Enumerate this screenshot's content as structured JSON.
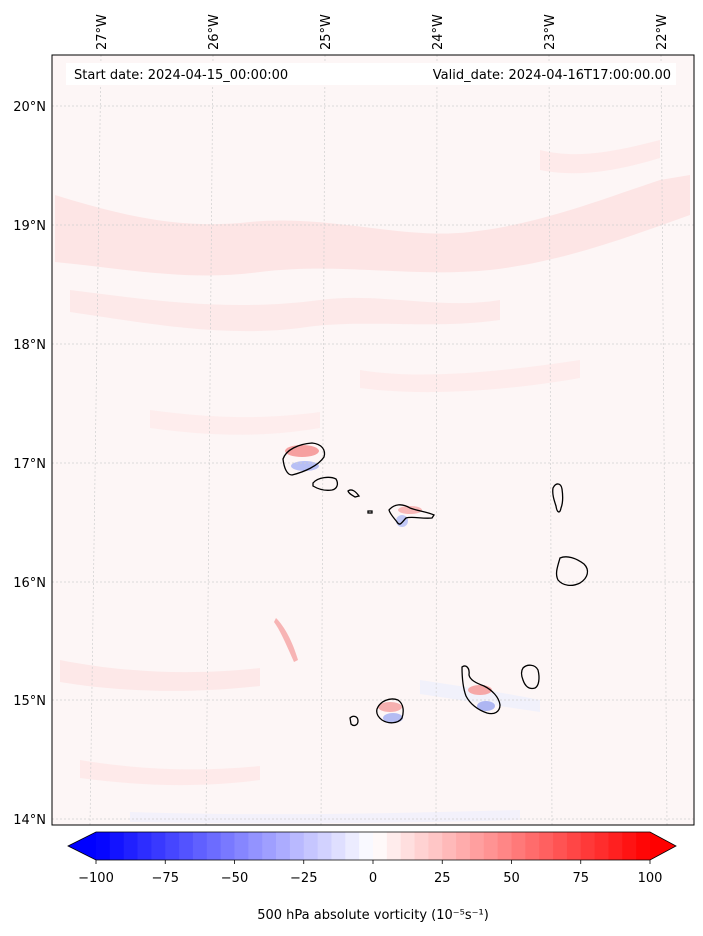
{
  "header": {
    "start_date": "Start date: 2024-04-15_00:00:00",
    "valid_date": "Valid_date: 2024-04-16T17:00:00.00"
  },
  "map": {
    "lon_labels": [
      "27°W",
      "26°W",
      "25°W",
      "24°W",
      "23°W",
      "22°W"
    ],
    "lat_labels": [
      "20°N",
      "19°N",
      "18°N",
      "17°N",
      "16°N",
      "15°N",
      "14°N"
    ],
    "colors": {
      "background": "#fdf6f6",
      "positive": "#ff0000",
      "negative": "#0000ff",
      "coastline": "#000000",
      "gridline": "#cccccc"
    }
  },
  "colorbar": {
    "ticks": [
      "−100",
      "−75",
      "−50",
      "−25",
      "0",
      "25",
      "50",
      "75",
      "100"
    ],
    "label": "500 hPa absolute vorticity (10⁻⁵s⁻¹)",
    "min": -100,
    "max": 100,
    "extend": "both"
  }
}
